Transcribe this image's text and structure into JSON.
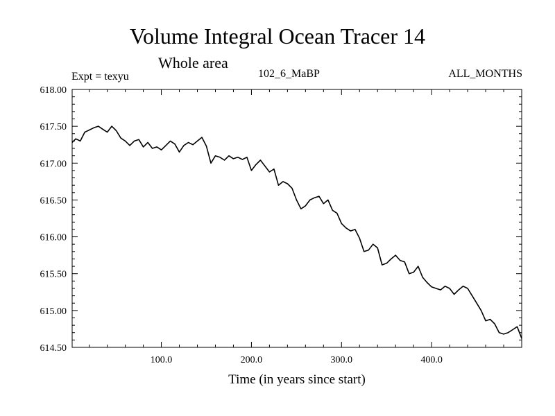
{
  "header": {
    "title": "Volume Integral Ocean Tracer 14",
    "subtitle": "Whole area",
    "expt": "Expt = texyu",
    "run": "102_6_MaBP",
    "months": "ALL_MONTHS"
  },
  "chart_data": {
    "type": "line",
    "title": "Volume Integral Ocean Tracer 14",
    "subtitle": "Whole area",
    "xlabel": "Time (in years since start)",
    "ylabel": "",
    "xlim": [
      1,
      500
    ],
    "ylim": [
      614.5,
      618.0
    ],
    "x_ticks": [
      100,
      200,
      300,
      400
    ],
    "x_tick_labels": [
      "100.0",
      "200.0",
      "300.0",
      "400.0"
    ],
    "y_ticks": [
      614.5,
      615.0,
      615.5,
      616.0,
      616.5,
      617.0,
      617.5,
      618.0
    ],
    "y_tick_labels": [
      "614.50",
      "615.00",
      "615.50",
      "616.00",
      "616.50",
      "617.00",
      "617.50",
      "618.00"
    ],
    "grid": false,
    "line_color": "#000000",
    "series": [
      {
        "x": [
          1,
          5,
          10,
          15,
          20,
          25,
          30,
          35,
          40,
          45,
          50,
          55,
          60,
          65,
          70,
          75,
          80,
          85,
          90,
          95,
          100,
          105,
          110,
          115,
          120,
          125,
          130,
          135,
          140,
          145,
          150,
          155,
          160,
          165,
          170,
          175,
          180,
          185,
          190,
          195,
          200,
          205,
          210,
          215,
          220,
          225,
          230,
          235,
          240,
          245,
          250,
          255,
          260,
          265,
          270,
          275,
          280,
          285,
          290,
          295,
          300,
          305,
          310,
          315,
          320,
          325,
          330,
          335,
          340,
          345,
          350,
          355,
          360,
          365,
          370,
          375,
          380,
          385,
          390,
          395,
          400,
          405,
          410,
          415,
          420,
          425,
          430,
          435,
          440,
          445,
          450,
          455,
          460,
          465,
          470,
          475,
          480,
          485,
          490,
          495,
          500
        ],
        "y": [
          617.28,
          617.33,
          617.3,
          617.42,
          617.45,
          617.48,
          617.5,
          617.46,
          617.42,
          617.5,
          617.44,
          617.34,
          617.3,
          617.24,
          617.3,
          617.32,
          617.22,
          617.28,
          617.2,
          617.22,
          617.18,
          617.24,
          617.3,
          617.26,
          617.15,
          617.24,
          617.28,
          617.25,
          617.3,
          617.35,
          617.23,
          617.0,
          617.1,
          617.08,
          617.04,
          617.1,
          617.06,
          617.08,
          617.05,
          617.08,
          616.9,
          616.98,
          617.04,
          616.96,
          616.88,
          616.92,
          616.7,
          616.75,
          616.72,
          616.66,
          616.5,
          616.38,
          616.42,
          616.5,
          616.53,
          616.55,
          616.45,
          616.5,
          616.36,
          616.32,
          616.18,
          616.12,
          616.08,
          616.1,
          615.98,
          615.8,
          615.82,
          615.9,
          615.85,
          615.62,
          615.64,
          615.7,
          615.75,
          615.68,
          615.66,
          615.5,
          615.52,
          615.6,
          615.45,
          615.38,
          615.32,
          615.3,
          615.28,
          615.33,
          615.3,
          615.22,
          615.28,
          615.33,
          615.3,
          615.2,
          615.1,
          615.0,
          614.86,
          614.88,
          614.82,
          614.7,
          614.68,
          614.7,
          614.74,
          614.78,
          614.62
        ]
      }
    ]
  }
}
